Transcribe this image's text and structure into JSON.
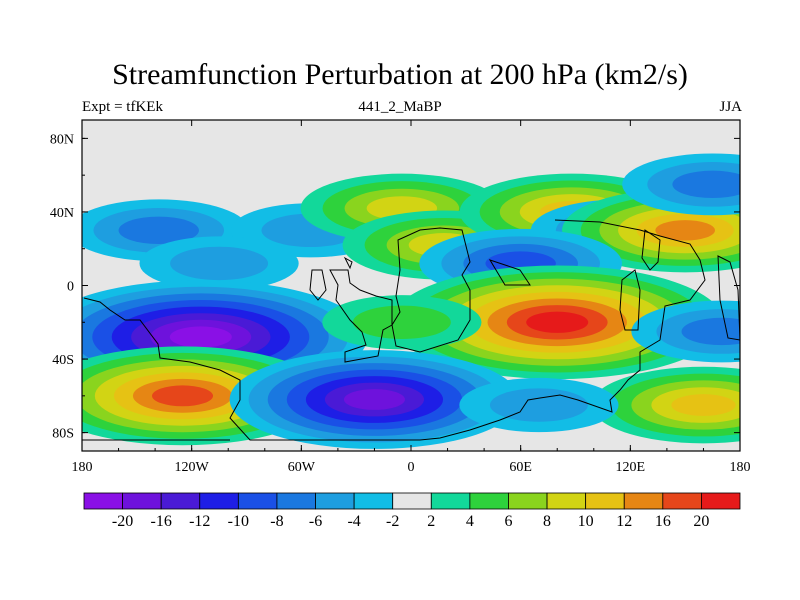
{
  "title": "Streamfunction Perturbation at 200 hPa (km2/s)",
  "subtitle_left": "Expt = tfKEk",
  "subtitle_center": "441_2_MaBP",
  "subtitle_right": "JJA",
  "lat_ticks": [
    "80N",
    "40N",
    "0",
    "40S",
    "80S"
  ],
  "lon_ticks": [
    "180",
    "120W",
    "60W",
    "0",
    "60E",
    "120E",
    "180"
  ],
  "colorbar": {
    "labels": [
      "-20",
      "-16",
      "-12",
      "-10",
      "-8",
      "-6",
      "-4",
      "-2",
      "2",
      "4",
      "6",
      "8",
      "10",
      "12",
      "16",
      "20"
    ],
    "colors": [
      "#8a10e6",
      "#6e12dc",
      "#4a1ad6",
      "#1e1ee6",
      "#1a50e6",
      "#1a78e0",
      "#1e9ee0",
      "#12bde6",
      "#e6e6e6",
      "#12d89a",
      "#2ed23c",
      "#8ad41e",
      "#d2d414",
      "#e6c214",
      "#e68614",
      "#e6461a",
      "#e61a1a"
    ]
  },
  "chart_data": {
    "type": "heatmap",
    "x_range": [
      -180,
      180
    ],
    "y_range": [
      -90,
      90
    ],
    "anomaly_centers": [
      {
        "lon": -138,
        "lat": 30,
        "value": -6
      },
      {
        "lon": -55,
        "lat": 30,
        "value": -4
      },
      {
        "lon": -5,
        "lat": 42,
        "value": 8
      },
      {
        "lon": 18,
        "lat": 22,
        "value": 8
      },
      {
        "lon": 88,
        "lat": 40,
        "value": 10
      },
      {
        "lon": 115,
        "lat": 30,
        "value": -6
      },
      {
        "lon": 150,
        "lat": 30,
        "value": 12
      },
      {
        "lon": 165,
        "lat": 55,
        "value": -6
      },
      {
        "lon": 60,
        "lat": 12,
        "value": -8
      },
      {
        "lon": -105,
        "lat": 12,
        "value": -4
      },
      {
        "lon": -115,
        "lat": -28,
        "value": -20
      },
      {
        "lon": 80,
        "lat": -20,
        "value": 20
      },
      {
        "lon": -5,
        "lat": -20,
        "value": 4
      },
      {
        "lon": 170,
        "lat": -25,
        "value": -6
      },
      {
        "lon": -125,
        "lat": -60,
        "value": 16
      },
      {
        "lon": -20,
        "lat": -62,
        "value": -16
      },
      {
        "lon": 160,
        "lat": -65,
        "value": 10
      },
      {
        "lon": 70,
        "lat": -65,
        "value": -4
      }
    ]
  }
}
